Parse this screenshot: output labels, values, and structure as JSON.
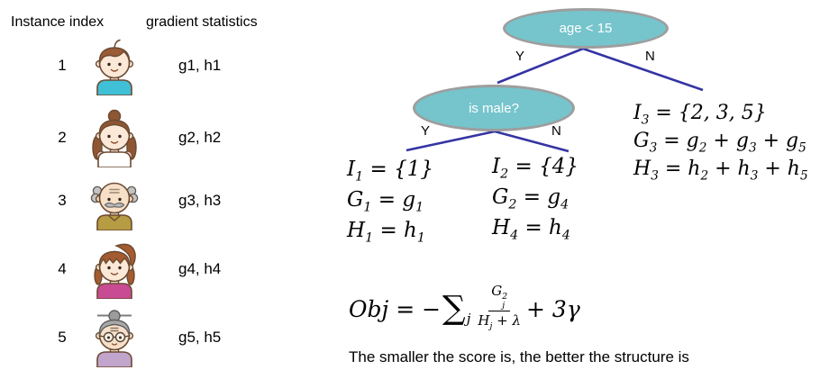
{
  "colors": {
    "node_fill": "#76C4CC",
    "node_border": "#9E9E9E",
    "node_text": "#FFFFFF",
    "branch_line": "#3434A4",
    "text": "#000000"
  },
  "left_panel": {
    "header_instance": "Instance index",
    "header_gradient": "gradient statistics",
    "rows": [
      {
        "index": "1",
        "avatar": "boy",
        "stats": "g1, h1"
      },
      {
        "index": "2",
        "avatar": "girl",
        "stats": "g2, h2"
      },
      {
        "index": "3",
        "avatar": "old-man",
        "stats": "g3, h3"
      },
      {
        "index": "4",
        "avatar": "woman",
        "stats": "g4, h4"
      },
      {
        "index": "5",
        "avatar": "old-woman",
        "stats": "g5, h5"
      }
    ]
  },
  "tree": {
    "root": {
      "label": "age < 15",
      "yes_label": "Y",
      "no_label": "N"
    },
    "child": {
      "label": "is male?",
      "yes_label": "Y",
      "no_label": "N"
    }
  },
  "partitions": {
    "leaf1": [
      "I_1 = {1}",
      "G_1 = g_1",
      "H_1 = h_1"
    ],
    "leaf2": [
      "I_2 = {4}",
      "G_2 = g_4",
      "H_4 = h_4"
    ],
    "leaf3": [
      "I_3 = {2, 3, 5}",
      "G_3 = g_2 + g_3 + g_5",
      "H_3 = h_2 + h_3 + h_5"
    ]
  },
  "objective": {
    "lhs": "Obj = −",
    "sum_symbol": "∑",
    "sum_index": "j",
    "numerator": "G_j^2",
    "denominator": "H_j + λ",
    "suffix": "+ 3γ"
  },
  "caption": "The smaller the score is, the better the structure is"
}
